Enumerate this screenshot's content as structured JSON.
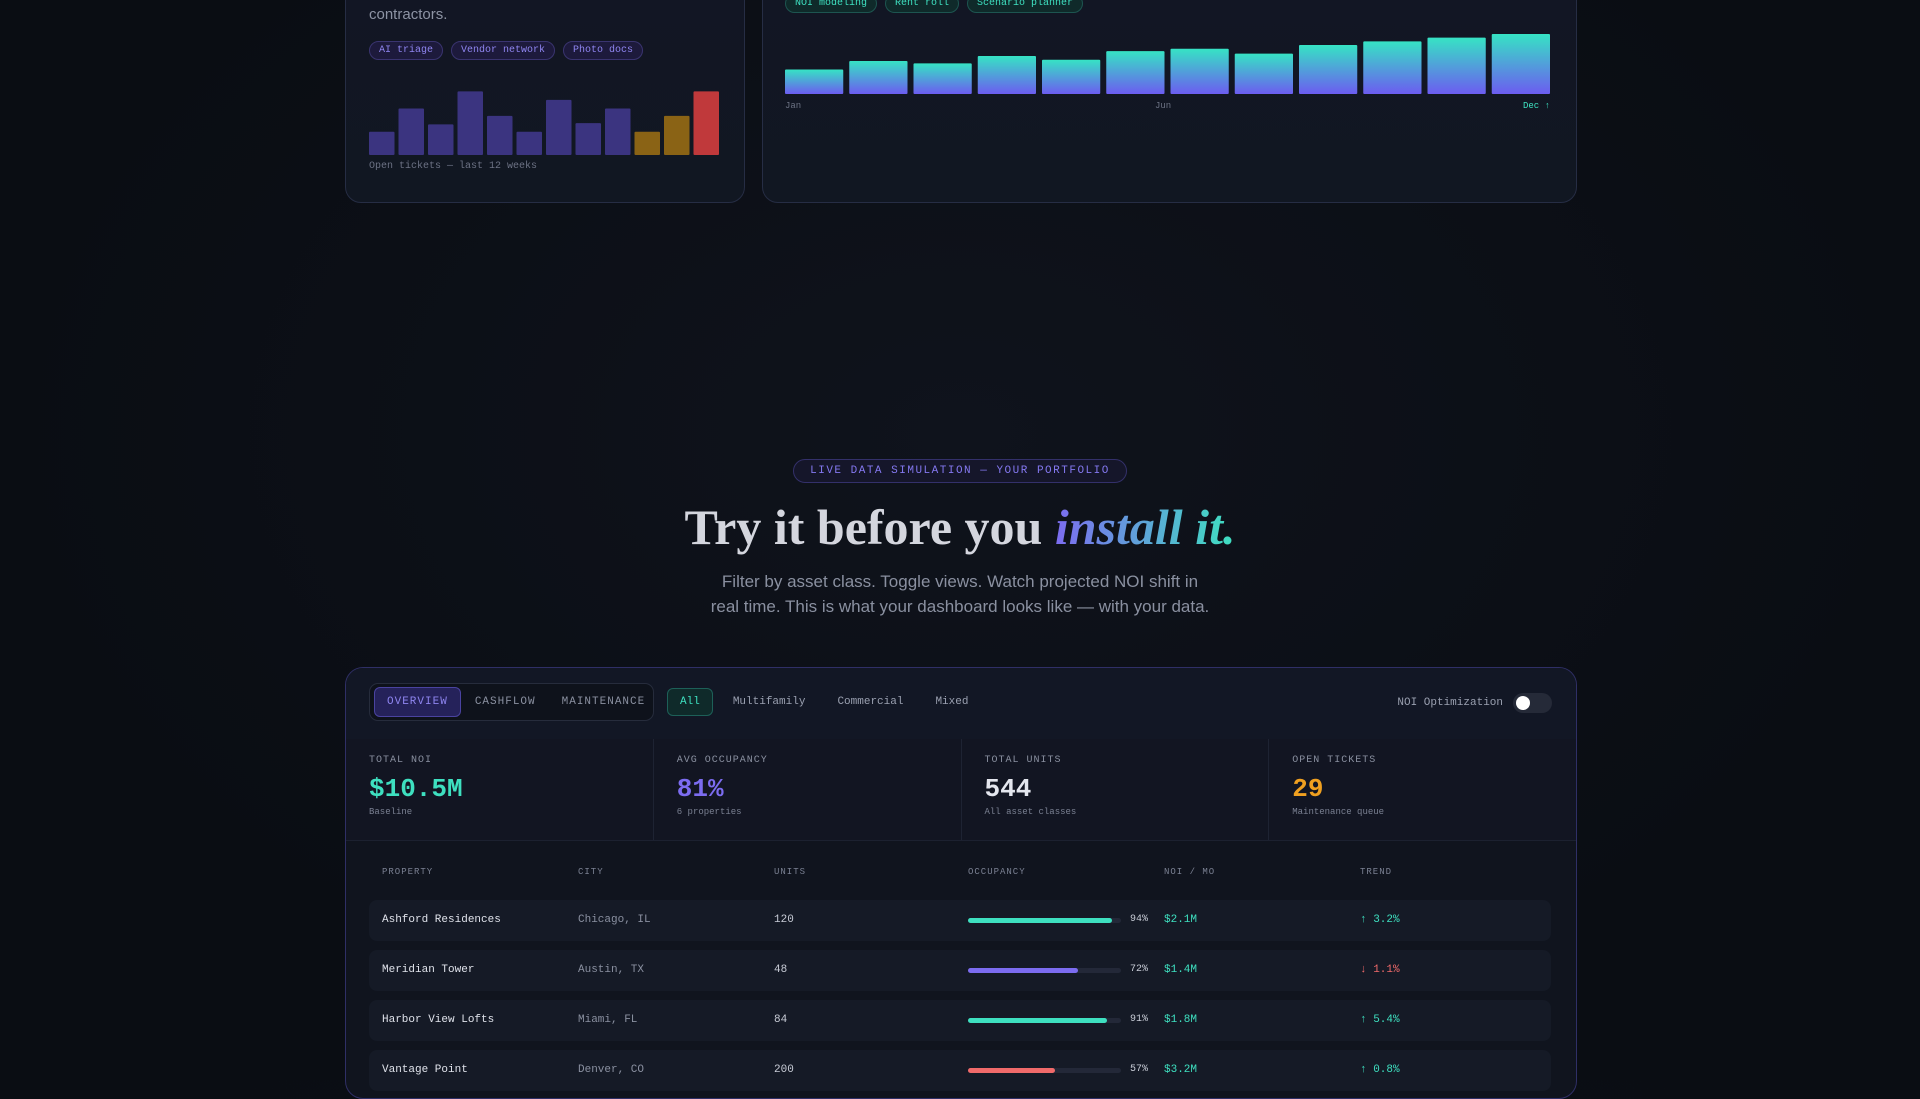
{
  "maintenance_card": {
    "text": "contractors.",
    "tags": [
      "AI triage",
      "Vendor network",
      "Photo docs"
    ],
    "chart": {
      "type": "bar",
      "values": [
        19,
        38,
        25,
        52,
        32,
        19,
        45,
        26,
        38,
        19,
        32,
        52
      ],
      "colors": [
        "#3b3480",
        "#3b3480",
        "#3b3480",
        "#3b3480",
        "#3b3480",
        "#3b3480",
        "#3b3480",
        "#3b3480",
        "#3b3480",
        "#8a6315",
        "#8a6315",
        "#c0393b"
      ]
    },
    "caption": "Open tickets — last 12 weeks"
  },
  "noi_card": {
    "tags": [
      "NOI modeling",
      "Rent roll",
      "Scenario planner"
    ],
    "chart": {
      "type": "bar",
      "values": [
        20,
        27,
        25,
        31,
        28,
        35,
        37,
        33,
        40,
        43,
        46,
        49
      ]
    },
    "axis_labels": [
      "Jan",
      "Jun",
      "Dec ↑"
    ]
  },
  "section": {
    "badge": "LIVE DATA SIMULATION — YOUR PORTFOLIO",
    "title": "Try it before you ",
    "title_accent": "install it.",
    "subtitle": "Filter by asset class. Toggle views. Watch projected NOI shift in real time. This is what your dashboard looks like — with your data."
  },
  "dashboard": {
    "tabs": [
      "OVERVIEW",
      "CASHFLOW",
      "MAINTENANCE"
    ],
    "filters": [
      "All",
      "Multifamily",
      "Commercial",
      "Mixed"
    ],
    "toggle_label": "NOI Optimization",
    "kpis": [
      {
        "label": "TOTAL NOI",
        "value": "$10.5M",
        "sub": "Baseline",
        "color": "#3ee0c0"
      },
      {
        "label": "AVG OCCUPANCY",
        "value": "81%",
        "sub": "6 properties",
        "color": "#7c6cf0"
      },
      {
        "label": "TOTAL UNITS",
        "value": "544",
        "sub": "All asset classes",
        "color": "#e4e6ee"
      },
      {
        "label": "OPEN TICKETS",
        "value": "29",
        "sub": "Maintenance queue",
        "color": "#f0a020"
      }
    ],
    "table": {
      "headers": [
        "PROPERTY",
        "CITY",
        "UNITS",
        "OCCUPANCY",
        "NOI / MO",
        "TREND"
      ],
      "rows": [
        {
          "property": "Ashford Residences",
          "city": "Chicago, IL",
          "units": "120",
          "occupancy": {
            "value": 94,
            "label": "94%"
          },
          "bar_color": "#3ee0c0",
          "noi": "$2.1M",
          "trend": "↑ 3.2%",
          "trend_color": "#3ee0c0"
        },
        {
          "property": "Meridian Tower",
          "city": "Austin, TX",
          "units": "48",
          "occupancy": {
            "value": 72,
            "label": "72%"
          },
          "bar_color": "#7c6cf0",
          "noi": "$1.4M",
          "trend": "↓ 1.1%",
          "trend_color": "#f06a6a"
        },
        {
          "property": "Harbor View Lofts",
          "city": "Miami, FL",
          "units": "84",
          "occupancy": {
            "value": 91,
            "label": "91%"
          },
          "bar_color": "#3ee0c0",
          "noi": "$1.8M",
          "trend": "↑ 5.4%",
          "trend_color": "#3ee0c0"
        },
        {
          "property": "Vantage Point",
          "city": "Denver, CO",
          "units": "200",
          "occupancy": {
            "value": 57,
            "label": "57%"
          },
          "bar_color": "#f06a6a",
          "noi": "$3.2M",
          "trend": "↑ 0.8%",
          "trend_color": "#3ee0c0"
        }
      ]
    }
  }
}
